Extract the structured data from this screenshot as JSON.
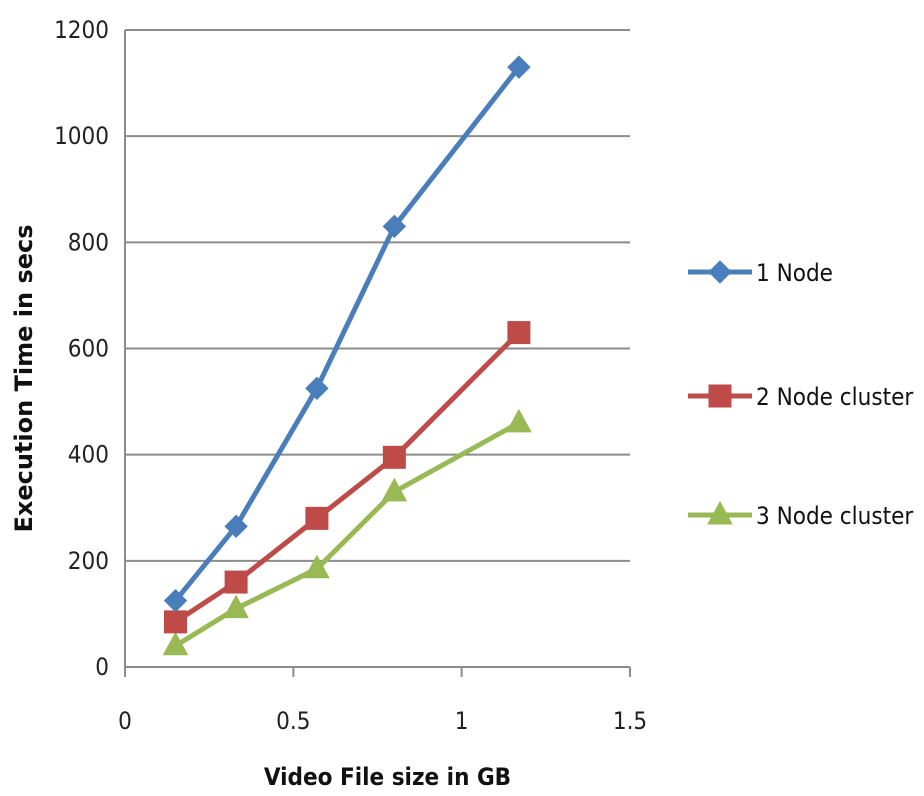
{
  "chart_data": {
    "type": "scatter",
    "title": "",
    "xlabel": "Video File size in GB",
    "ylabel": "Execution Time in secs",
    "xlim": [
      0,
      1.5
    ],
    "ylim": [
      0,
      1200
    ],
    "x_ticks": [
      "0",
      "0.5",
      "1",
      "1.5"
    ],
    "y_ticks": [
      "0",
      "200",
      "400",
      "600",
      "800",
      "1000",
      "1200"
    ],
    "grid": "horizontal",
    "legend_position": "right",
    "series": [
      {
        "name": "1 Node",
        "color": "#4a7ebb",
        "marker": "diamond",
        "x": [
          0.15,
          0.33,
          0.57,
          0.8,
          1.17
        ],
        "y": [
          125,
          265,
          525,
          830,
          1130
        ]
      },
      {
        "name": "2 Node cluster",
        "color": "#be4b48",
        "marker": "square",
        "x": [
          0.15,
          0.33,
          0.57,
          0.8,
          1.17
        ],
        "y": [
          85,
          160,
          280,
          395,
          630
        ]
      },
      {
        "name": "3 Node cluster",
        "color": "#98b954",
        "marker": "triangle",
        "x": [
          0.15,
          0.33,
          0.57,
          0.8,
          1.17
        ],
        "y": [
          40,
          110,
          185,
          330,
          460
        ]
      }
    ]
  }
}
